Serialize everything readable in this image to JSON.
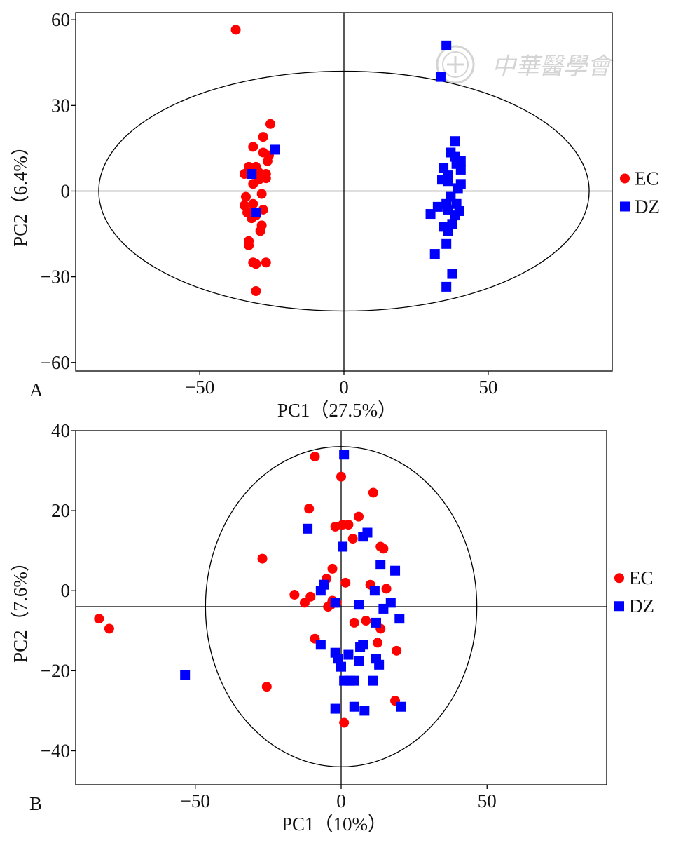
{
  "watermark_text": "中華醫學會",
  "colors": {
    "EC": "#ff0000",
    "DZ": "#0000ff",
    "axes": "#000000"
  },
  "chart_data": [
    {
      "type": "scatter",
      "panel_label": "A",
      "xlabel": "PC1（27.5%）",
      "ylabel": "PC2（6.4%）",
      "xlim": [
        -93,
        93
      ],
      "ylim": [
        -63,
        62.5
      ],
      "xticks": [
        -50,
        0,
        50
      ],
      "yticks": [
        60,
        30,
        0,
        -30,
        -60
      ],
      "xtick_labels": [
        "−50",
        "0",
        "50"
      ],
      "ytick_labels": [
        "60",
        "30",
        "0",
        "−30",
        "−60"
      ],
      "ellipse": {
        "cx": 0,
        "cy": 0,
        "rx": 85,
        "ry": 42
      },
      "legend": {
        "placement": "right",
        "entries": [
          "EC",
          "DZ"
        ]
      },
      "series": [
        {
          "name": "EC",
          "marker": "circle",
          "points": [
            [
              -37.5,
              56.5
            ],
            [
              -25.5,
              23.5
            ],
            [
              -28,
              19
            ],
            [
              -31.5,
              15.5
            ],
            [
              -28,
              13.5
            ],
            [
              -26,
              12.5
            ],
            [
              -26.5,
              10.5
            ],
            [
              -30.5,
              8.5
            ],
            [
              -33,
              8.5
            ],
            [
              -29.5,
              6.5
            ],
            [
              -34.5,
              6
            ],
            [
              -27,
              6
            ],
            [
              -27,
              4.5
            ],
            [
              -29.5,
              4
            ],
            [
              -31.5,
              2.5
            ],
            [
              -28.5,
              -1
            ],
            [
              -34,
              -2
            ],
            [
              -31.5,
              -4.5
            ],
            [
              -34.5,
              -5
            ],
            [
              -28,
              -6.5
            ],
            [
              -32,
              -7.5
            ],
            [
              -33.5,
              -7.5
            ],
            [
              -30.5,
              -8.5
            ],
            [
              -32,
              -9.5
            ],
            [
              -28.5,
              -12
            ],
            [
              -29,
              -14
            ],
            [
              -33,
              -17.5
            ],
            [
              -33,
              -19
            ],
            [
              -31.5,
              -25
            ],
            [
              -30.5,
              -25.5
            ],
            [
              -27,
              -25
            ],
            [
              -30.5,
              -35
            ]
          ]
        },
        {
          "name": "DZ",
          "marker": "square",
          "points": [
            [
              35.5,
              51
            ],
            [
              33.5,
              40
            ],
            [
              -24,
              14.5
            ],
            [
              38.5,
              17.5
            ],
            [
              37,
              13.5
            ],
            [
              38.5,
              12
            ],
            [
              40.5,
              10.5
            ],
            [
              39,
              9.5
            ],
            [
              40.5,
              7.5
            ],
            [
              34.5,
              8
            ],
            [
              36,
              5.5
            ],
            [
              -32,
              6
            ],
            [
              34,
              4
            ],
            [
              36,
              3.5
            ],
            [
              40.5,
              2.5
            ],
            [
              39.5,
              1
            ],
            [
              37,
              -2
            ],
            [
              35.5,
              -4.5
            ],
            [
              39,
              -4.5
            ],
            [
              32.5,
              -5.5
            ],
            [
              36,
              -6.5
            ],
            [
              40,
              -7
            ],
            [
              30,
              -8
            ],
            [
              -30.5,
              -7.5
            ],
            [
              38.5,
              -8.5
            ],
            [
              37.5,
              -11.5
            ],
            [
              34.5,
              -12.5
            ],
            [
              36,
              -14
            ],
            [
              35.5,
              -18.5
            ],
            [
              31.5,
              -22
            ],
            [
              37.5,
              -29
            ],
            [
              35.5,
              -33.5
            ]
          ]
        }
      ]
    },
    {
      "type": "scatter",
      "panel_label": "B",
      "xlabel": "PC1（10%）",
      "ylabel": "PC2（7.6%）",
      "xlim": [
        -91,
        91
      ],
      "ylim": [
        -48.5,
        40
      ],
      "xticks": [
        -50,
        0,
        50
      ],
      "yticks": [
        40,
        20,
        0,
        -20,
        -40
      ],
      "xtick_labels": [
        "−50",
        "0",
        "50"
      ],
      "ytick_labels": [
        "40",
        "20",
        "0",
        "−20",
        "−40"
      ],
      "hline_y": -4,
      "ellipse": {
        "cx": 0,
        "cy": -4,
        "rx": 46.5,
        "ry": 40
      },
      "legend": {
        "placement": "right",
        "entries": [
          "EC",
          "DZ"
        ]
      },
      "series": [
        {
          "name": "EC",
          "marker": "circle",
          "points": [
            [
              -9,
              33.5
            ],
            [
              0,
              28.5
            ],
            [
              11,
              24.5
            ],
            [
              -11,
              20.5
            ],
            [
              6,
              18.5
            ],
            [
              -2,
              16
            ],
            [
              0.5,
              16.5
            ],
            [
              2.5,
              16.5
            ],
            [
              4,
              13
            ],
            [
              13.5,
              11
            ],
            [
              14.5,
              10.5
            ],
            [
              -27,
              8
            ],
            [
              -3,
              5.5
            ],
            [
              -5,
              3
            ],
            [
              1.5,
              2
            ],
            [
              10,
              1.5
            ],
            [
              15.5,
              0.5
            ],
            [
              -16,
              -1
            ],
            [
              -10.5,
              -1.5
            ],
            [
              -12.5,
              -3
            ],
            [
              -3,
              -2.5
            ],
            [
              -1.5,
              -3
            ],
            [
              -3.5,
              -3.5
            ],
            [
              -4.5,
              -4
            ],
            [
              8.5,
              -7.5
            ],
            [
              4.5,
              -8
            ],
            [
              13.5,
              -9.5
            ],
            [
              -83,
              -7
            ],
            [
              -79.5,
              -9.5
            ],
            [
              -9,
              -12
            ],
            [
              12.5,
              -13
            ],
            [
              19,
              -15
            ],
            [
              -25.5,
              -24
            ],
            [
              18.5,
              -27.5
            ],
            [
              1,
              -33
            ]
          ]
        },
        {
          "name": "DZ",
          "marker": "square",
          "points": [
            [
              1,
              34
            ],
            [
              -11.5,
              15.5
            ],
            [
              9,
              14.5
            ],
            [
              7.5,
              13.5
            ],
            [
              0.5,
              11
            ],
            [
              13.5,
              6.5
            ],
            [
              18.5,
              5
            ],
            [
              -6,
              1.5
            ],
            [
              -7,
              0
            ],
            [
              11.5,
              0
            ],
            [
              -2,
              -3
            ],
            [
              6,
              -3.5
            ],
            [
              17,
              -3
            ],
            [
              14.5,
              -4.5
            ],
            [
              20,
              -7
            ],
            [
              12,
              -8
            ],
            [
              -7,
              -13.5
            ],
            [
              7.5,
              -13.5
            ],
            [
              6.5,
              -14
            ],
            [
              -2,
              -15.5
            ],
            [
              2.5,
              -16
            ],
            [
              -1,
              -17
            ],
            [
              12,
              -17
            ],
            [
              6,
              -17.5
            ],
            [
              13,
              -18.5
            ],
            [
              0,
              -19
            ],
            [
              1,
              -22.5
            ],
            [
              3,
              -22.5
            ],
            [
              4.5,
              -22.5
            ],
            [
              11,
              -22.5
            ],
            [
              -53.5,
              -21
            ],
            [
              -2,
              -29.5
            ],
            [
              4.5,
              -29
            ],
            [
              8,
              -30
            ],
            [
              20.5,
              -29
            ]
          ]
        }
      ]
    }
  ]
}
